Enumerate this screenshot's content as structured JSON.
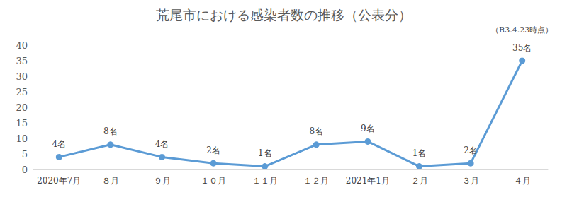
{
  "chart_data": {
    "type": "line",
    "title": "荒尾市における感染者数の推移（公表分）",
    "annotation": "（R3.4.23時点）",
    "categories": [
      "2020年7月",
      "８月",
      "９月",
      "１０月",
      "１１月",
      "１２月",
      "2021年1月",
      "２月",
      "３月",
      "４月"
    ],
    "values": [
      4,
      8,
      4,
      2,
      1,
      8,
      9,
      1,
      2,
      35
    ],
    "value_labels": [
      "4名",
      "8名",
      "4名",
      "2名",
      "1名",
      "8名",
      "9名",
      "1名",
      "2名",
      "35名"
    ],
    "color": "#5b9bd5",
    "marker": "circle",
    "ylim": [
      0,
      40
    ],
    "yticks": [
      0,
      5,
      10,
      15,
      20,
      25,
      30,
      35,
      40
    ],
    "grid": false,
    "data_labels": true
  }
}
